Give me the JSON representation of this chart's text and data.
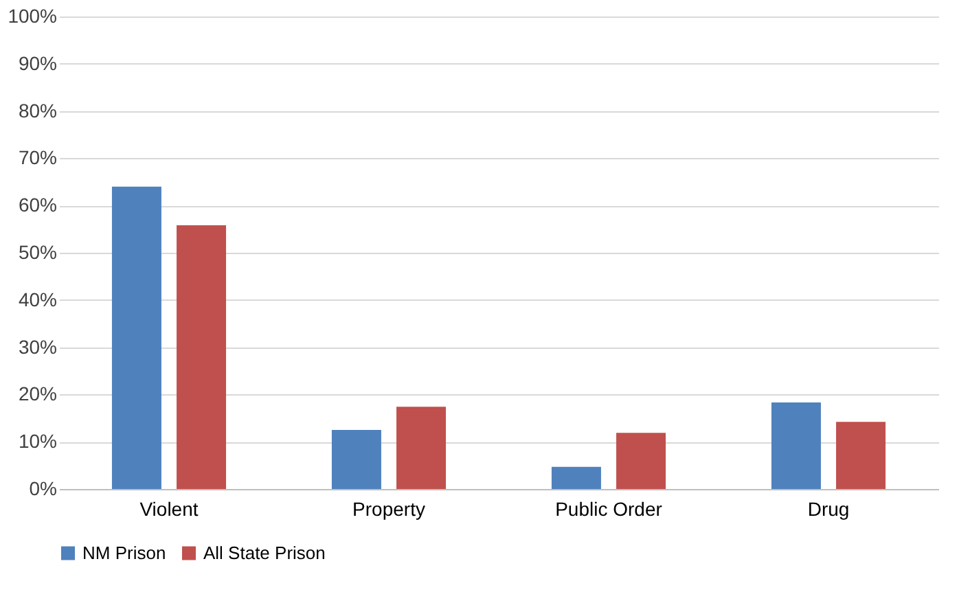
{
  "chart_data": {
    "type": "bar",
    "categories": [
      "Violent",
      "Property",
      "Public Order",
      "Drug"
    ],
    "series": [
      {
        "name": "NM Prison",
        "color": "#4f81bd",
        "values": [
          64,
          12.5,
          4.7,
          18.3
        ]
      },
      {
        "name": "All State Prison",
        "color": "#c0504d",
        "values": [
          55.8,
          17.4,
          11.9,
          14.2
        ]
      }
    ],
    "ylim": [
      0,
      100
    ],
    "yticks": [
      {
        "value": 0,
        "label": "0%"
      },
      {
        "value": 10,
        "label": "10%"
      },
      {
        "value": 20,
        "label": "20%"
      },
      {
        "value": 30,
        "label": "30%"
      },
      {
        "value": 40,
        "label": "40%"
      },
      {
        "value": 50,
        "label": "50%"
      },
      {
        "value": 60,
        "label": "60%"
      },
      {
        "value": 70,
        "label": "70%"
      },
      {
        "value": 80,
        "label": "80%"
      },
      {
        "value": 90,
        "label": "90%"
      },
      {
        "value": 100,
        "label": "100%"
      }
    ],
    "grid": "y",
    "legend": "bottom"
  }
}
